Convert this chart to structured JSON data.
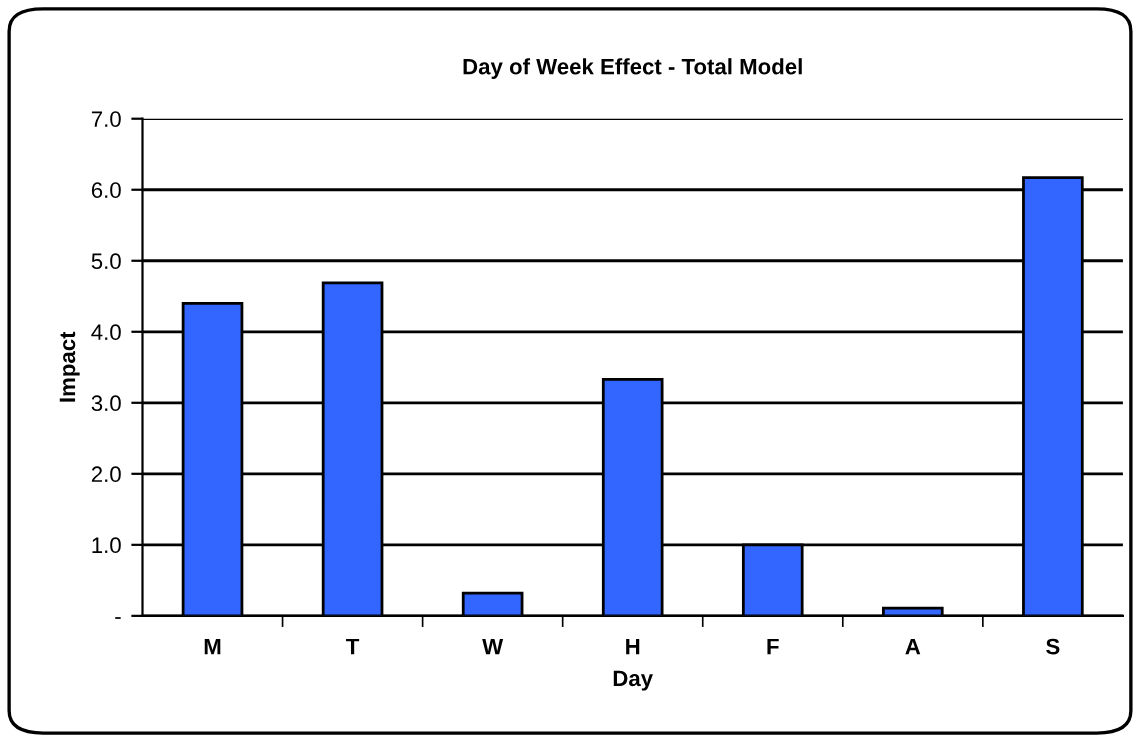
{
  "chart_data": {
    "type": "bar",
    "title": "Day of Week Effect - Total Model",
    "xlabel": "Day",
    "ylabel": "Impact",
    "categories": [
      "M",
      "T",
      "W",
      "H",
      "F",
      "A",
      "S"
    ],
    "values": [
      4.4,
      4.69,
      0.32,
      3.33,
      1.0,
      0.11,
      6.17
    ],
    "color": "#3366ff",
    "ylim": [
      0,
      7
    ],
    "yticks": [
      {
        "value": 0,
        "label": "-"
      },
      {
        "value": 1,
        "label": "1.0"
      },
      {
        "value": 2,
        "label": "2.0"
      },
      {
        "value": 3,
        "label": "3.0"
      },
      {
        "value": 4,
        "label": "4.0"
      },
      {
        "value": 5,
        "label": "5.0"
      },
      {
        "value": 6,
        "label": "6.0"
      },
      {
        "value": 7,
        "label": "7.0"
      }
    ],
    "grid": "y"
  }
}
